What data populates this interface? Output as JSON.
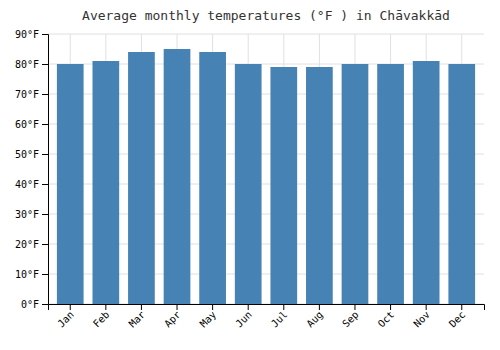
{
  "chart_data": {
    "type": "bar",
    "title": "Average monthly temperatures (°F ) in Chāvakkād",
    "categories": [
      "Jan",
      "Feb",
      "Mar",
      "Apr",
      "May",
      "Jun",
      "Jul",
      "Aug",
      "Sep",
      "Oct",
      "Nov",
      "Dec"
    ],
    "values": [
      80,
      81,
      84,
      85,
      84,
      80,
      79,
      79,
      80,
      80,
      81,
      80
    ],
    "ylim": [
      0,
      90
    ],
    "yticks": [
      {
        "value": 0,
        "label": "0°F"
      },
      {
        "value": 10,
        "label": "10°F"
      },
      {
        "value": 20,
        "label": "20°F"
      },
      {
        "value": 30,
        "label": "30°F"
      },
      {
        "value": 40,
        "label": "40°F"
      },
      {
        "value": 50,
        "label": "50°F"
      },
      {
        "value": 60,
        "label": "60°F"
      },
      {
        "value": 70,
        "label": "70°F"
      },
      {
        "value": 80,
        "label": "80°F"
      },
      {
        "value": 90,
        "label": "90°F"
      }
    ],
    "grid": true
  }
}
